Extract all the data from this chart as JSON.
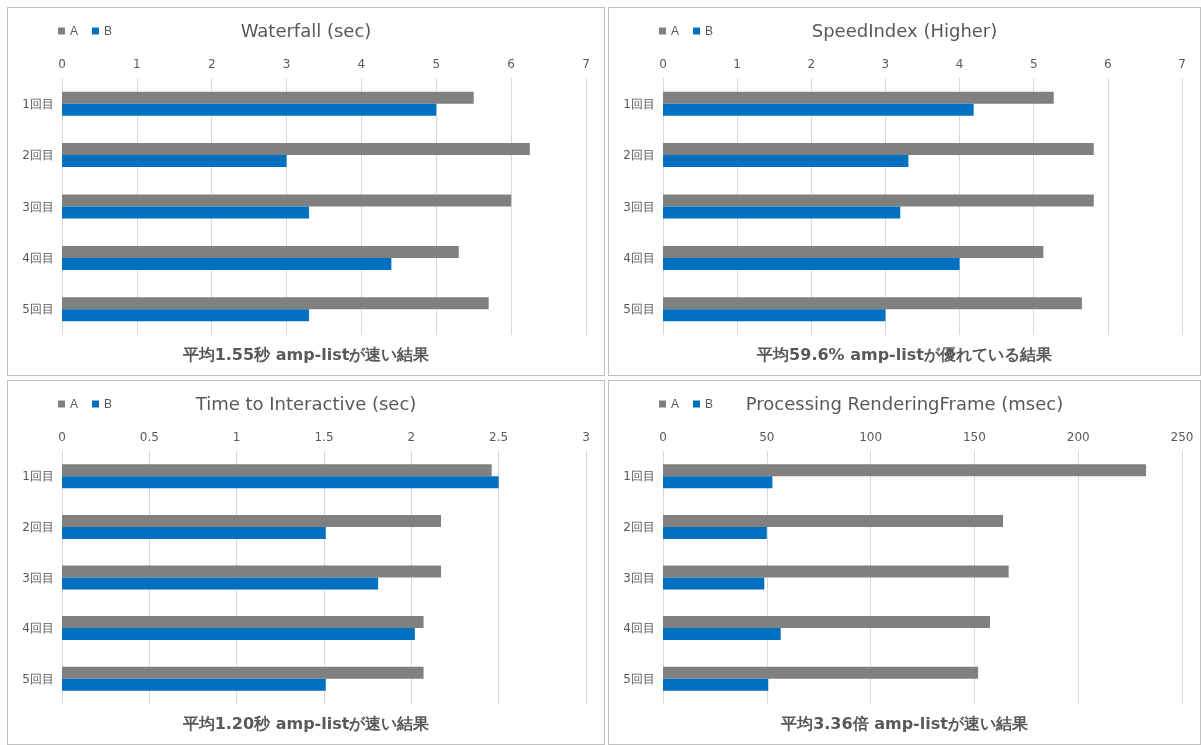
{
  "chart_data": [
    {
      "type": "bar",
      "orientation": "horizontal",
      "title": "Waterfall (sec)",
      "categories": [
        "1回目",
        "2回目",
        "3回目",
        "4回目",
        "5回目"
      ],
      "series": [
        {
          "name": "A",
          "color": "#808080",
          "values": [
            5.5,
            6.25,
            6.0,
            5.3,
            5.7
          ]
        },
        {
          "name": "B",
          "color": "#0070c0",
          "values": [
            5.0,
            3.0,
            3.3,
            4.4,
            3.3
          ]
        }
      ],
      "xlim": [
        0,
        7
      ],
      "xticks": [
        0,
        1,
        2,
        3,
        4,
        5,
        6,
        7
      ],
      "grid": "x",
      "legend": "top left",
      "annotations": [
        "平均1.55秒 amp-listが速い結果"
      ]
    },
    {
      "type": "bar",
      "orientation": "horizontal",
      "title": "SpeedIndex (Higher)",
      "categories": [
        "1回目",
        "2回目",
        "3回目",
        "4回目",
        "5回目"
      ],
      "series": [
        {
          "name": "A",
          "color": "#808080",
          "values": [
            5.27,
            5.81,
            5.81,
            5.13,
            5.65
          ]
        },
        {
          "name": "B",
          "color": "#0070c0",
          "values": [
            4.19,
            3.31,
            3.2,
            4.0,
            3.0
          ]
        }
      ],
      "xlim": [
        0,
        7
      ],
      "xticks": [
        0,
        1,
        2,
        3,
        4,
        5,
        6,
        7
      ],
      "grid": "x",
      "legend": "top left",
      "annotations": [
        "平均59.6% amp-listが優れている結果"
      ]
    },
    {
      "type": "bar",
      "orientation": "horizontal",
      "title": "Time to Interactive (sec)",
      "categories": [
        "1回目",
        "2回目",
        "3回目",
        "4回目",
        "5回目"
      ],
      "series": [
        {
          "name": "A",
          "color": "#808080",
          "values": [
            2.46,
            2.17,
            2.17,
            2.07,
            2.07
          ]
        },
        {
          "name": "B",
          "color": "#0070c0",
          "values": [
            2.5,
            1.51,
            1.81,
            2.02,
            1.51
          ]
        }
      ],
      "xlim": [
        0,
        3
      ],
      "xticks": [
        0,
        0.5,
        1,
        1.5,
        2,
        2.5,
        3
      ],
      "grid": "x",
      "legend": "top left",
      "annotations": [
        "平均1.20秒 amp-listが速い結果"
      ]
    },
    {
      "type": "bar",
      "orientation": "horizontal",
      "title": "Processing RenderingFrame (msec)",
      "categories": [
        "1回目",
        "2回目",
        "3回目",
        "4回目",
        "5回目"
      ],
      "series": [
        {
          "name": "A",
          "color": "#808080",
          "values": [
            232.7,
            163.8,
            166.5,
            157.5,
            151.8
          ]
        },
        {
          "name": "B",
          "color": "#0070c0",
          "values": [
            52.7,
            50,
            48.8,
            56.7,
            50.7
          ]
        }
      ],
      "xlim": [
        0,
        250
      ],
      "xticks": [
        0,
        50,
        100,
        150,
        200,
        250
      ],
      "grid": "x",
      "legend": "top left",
      "annotations": [
        "平均3.36倍 amp-listが速い結果"
      ]
    }
  ]
}
